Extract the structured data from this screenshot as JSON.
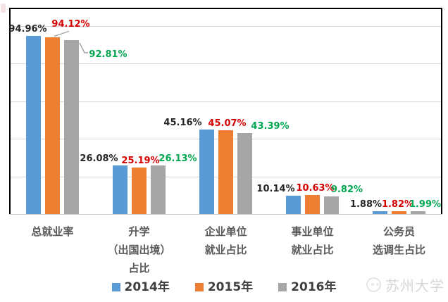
{
  "chart_data": {
    "type": "bar",
    "categories": [
      [
        "总就业率"
      ],
      [
        "升学",
        "（出国出境）",
        "占比"
      ],
      [
        "企业单位",
        "就业占比"
      ],
      [
        "事业单位",
        "就业占比"
      ],
      [
        "公务员",
        "选调生占比"
      ]
    ],
    "series": [
      {
        "name": "2014年",
        "color": "#5B9BD5",
        "label_color": "#262626",
        "values": [
          94.96,
          26.08,
          45.16,
          10.14,
          1.88
        ]
      },
      {
        "name": "2015年",
        "color": "#ED7D31",
        "label_color": "#D40000",
        "values": [
          94.12,
          25.19,
          45.07,
          10.63,
          1.82
        ]
      },
      {
        "name": "2016年",
        "color": "#A6A6A6",
        "label_color": "#00A650",
        "values": [
          92.81,
          26.13,
          43.39,
          9.82,
          1.99
        ]
      }
    ],
    "value_suffix": "%",
    "value_decimals": 2,
    "axis_max": 110,
    "gridlines": [
      20,
      40,
      60,
      80,
      100
    ],
    "grid_color": "#D9D9D9",
    "grid_on": true,
    "legend_position": "bottom"
  },
  "watermark": {
    "text": "苏州大学"
  }
}
